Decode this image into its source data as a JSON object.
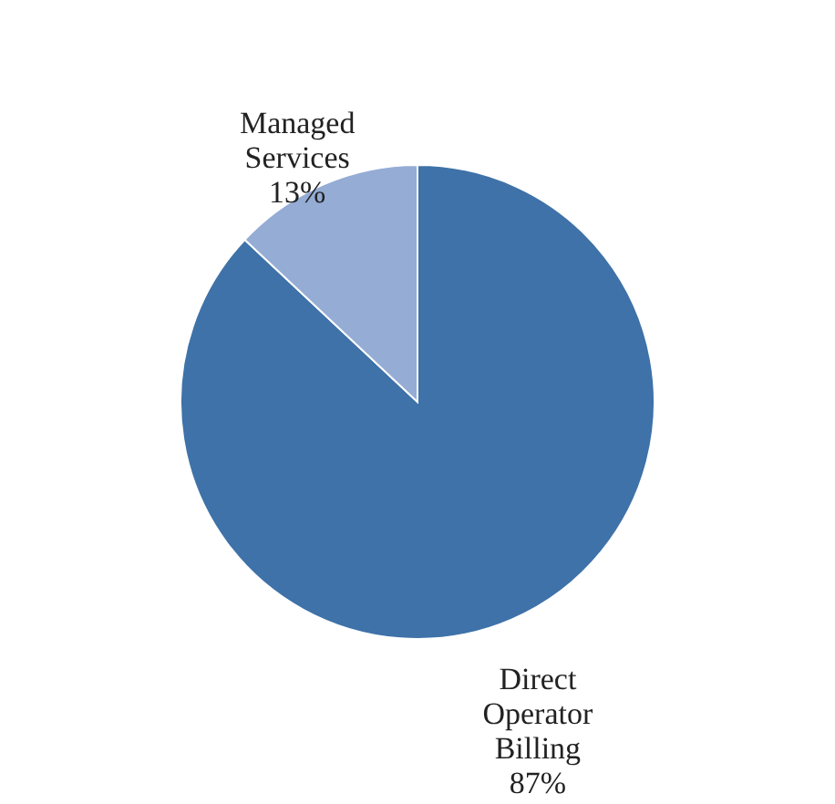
{
  "chart_data": {
    "type": "pie",
    "categories": [
      "Direct Operator Billing",
      "Managed Services"
    ],
    "values": [
      87,
      13
    ],
    "colors": [
      "#3e72a8",
      "#95acd5"
    ],
    "value_labels": [
      "87%",
      "13%"
    ],
    "legend": false
  }
}
